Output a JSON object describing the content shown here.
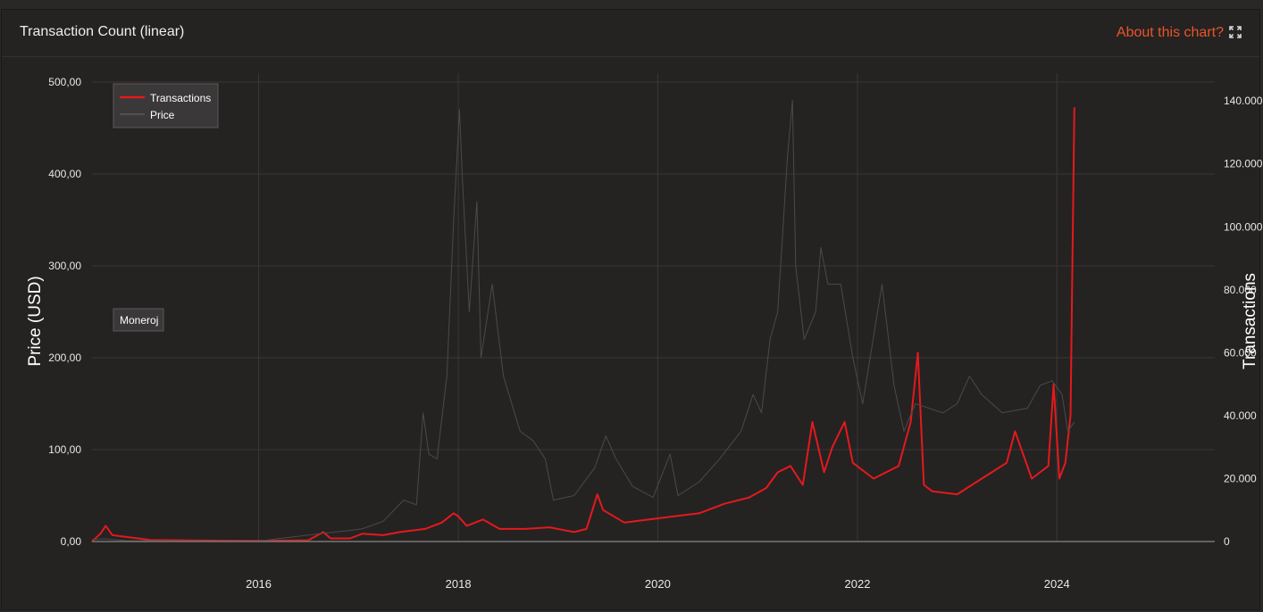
{
  "header": {
    "title": "Transaction Count (linear)",
    "about_label": "About this chart?"
  },
  "icons": {
    "expand": "expand-icon"
  },
  "colors": {
    "background": "#252222",
    "transactions": "#e31a1c",
    "price": "#4a4a4a",
    "link": "#e8552a",
    "grid": "#3a3737"
  },
  "chart_data": {
    "type": "line",
    "ylabel_left": "Price (USD)",
    "ylabel_right": "Transactions",
    "ylim_left": [
      0,
      500
    ],
    "ylim_right": [
      0,
      146000
    ],
    "xlim": [
      "2014-05-01",
      "2025-08-01"
    ],
    "x_ticks": [
      "2016",
      "2018",
      "2020",
      "2022",
      "2024"
    ],
    "y_left_ticks": [
      "0,00",
      "100,00",
      "200,00",
      "300,00",
      "400,00",
      "500,00"
    ],
    "y_right_ticks": [
      "0",
      "20.000",
      "40.000",
      "60.000",
      "80.000",
      "100.000",
      "120.000",
      "140.000"
    ],
    "grid": true,
    "legend": {
      "position": "top-left",
      "entries": [
        "Transactions",
        "Price"
      ]
    },
    "annotation": "Moneroj",
    "series": [
      {
        "name": "Transactions",
        "axis": "right",
        "points": [
          [
            "2014-05-01",
            0
          ],
          [
            "2014-06-01",
            2500
          ],
          [
            "2014-06-20",
            5000
          ],
          [
            "2014-07-15",
            2000
          ],
          [
            "2014-09-01",
            1500
          ],
          [
            "2014-12-01",
            500
          ],
          [
            "2015-06-01",
            300
          ],
          [
            "2016-01-01",
            200
          ],
          [
            "2016-07-01",
            400
          ],
          [
            "2016-08-25",
            3000
          ],
          [
            "2016-09-20",
            1000
          ],
          [
            "2016-12-01",
            1000
          ],
          [
            "2017-01-15",
            2500
          ],
          [
            "2017-04-01",
            2000
          ],
          [
            "2017-06-01",
            3000
          ],
          [
            "2017-09-01",
            4000
          ],
          [
            "2017-11-01",
            6000
          ],
          [
            "2017-12-15",
            9000
          ],
          [
            "2018-01-01",
            8000
          ],
          [
            "2018-02-01",
            5000
          ],
          [
            "2018-04-01",
            7000
          ],
          [
            "2018-06-01",
            4000
          ],
          [
            "2018-09-01",
            4000
          ],
          [
            "2018-12-01",
            4500
          ],
          [
            "2019-03-01",
            3000
          ],
          [
            "2019-04-15",
            4000
          ],
          [
            "2019-05-25",
            15000
          ],
          [
            "2019-06-15",
            10000
          ],
          [
            "2019-09-01",
            6000
          ],
          [
            "2019-12-01",
            7000
          ],
          [
            "2020-03-01",
            8000
          ],
          [
            "2020-06-01",
            9000
          ],
          [
            "2020-09-01",
            12000
          ],
          [
            "2020-12-01",
            14000
          ],
          [
            "2021-02-01",
            17000
          ],
          [
            "2021-03-15",
            22000
          ],
          [
            "2021-05-01",
            24000
          ],
          [
            "2021-06-15",
            18000
          ],
          [
            "2021-07-20",
            38000
          ],
          [
            "2021-09-01",
            22000
          ],
          [
            "2021-10-01",
            30000
          ],
          [
            "2021-11-15",
            38000
          ],
          [
            "2021-12-15",
            25000
          ],
          [
            "2022-03-01",
            20000
          ],
          [
            "2022-06-01",
            24000
          ],
          [
            "2022-07-15",
            38000
          ],
          [
            "2022-08-10",
            60000
          ],
          [
            "2022-09-01",
            18000
          ],
          [
            "2022-10-01",
            16000
          ],
          [
            "2023-01-01",
            15000
          ],
          [
            "2023-04-01",
            20000
          ],
          [
            "2023-07-01",
            25000
          ],
          [
            "2023-08-01",
            35000
          ],
          [
            "2023-10-01",
            20000
          ],
          [
            "2023-12-01",
            24000
          ],
          [
            "2023-12-20",
            50000
          ],
          [
            "2024-01-10",
            20000
          ],
          [
            "2024-02-01",
            25000
          ],
          [
            "2024-02-20",
            40000
          ],
          [
            "2024-03-05",
            138000
          ]
        ]
      },
      {
        "name": "Price",
        "axis": "left",
        "points": [
          [
            "2014-05-01",
            2
          ],
          [
            "2014-06-15",
            3
          ],
          [
            "2014-09-01",
            1
          ],
          [
            "2015-06-01",
            0.5
          ],
          [
            "2016-01-01",
            0.5
          ],
          [
            "2016-08-25",
            9
          ],
          [
            "2016-12-01",
            12
          ],
          [
            "2017-01-15",
            14
          ],
          [
            "2017-04-01",
            22
          ],
          [
            "2017-06-15",
            45
          ],
          [
            "2017-08-01",
            40
          ],
          [
            "2017-08-25",
            140
          ],
          [
            "2017-09-15",
            95
          ],
          [
            "2017-10-15",
            90
          ],
          [
            "2017-11-20",
            180
          ],
          [
            "2017-12-15",
            350
          ],
          [
            "2018-01-05",
            470
          ],
          [
            "2018-01-15",
            400
          ],
          [
            "2018-02-10",
            250
          ],
          [
            "2018-03-10",
            370
          ],
          [
            "2018-03-25",
            200
          ],
          [
            "2018-05-05",
            280
          ],
          [
            "2018-06-15",
            180
          ],
          [
            "2018-08-15",
            120
          ],
          [
            "2018-10-01",
            110
          ],
          [
            "2018-11-15",
            90
          ],
          [
            "2018-12-15",
            45
          ],
          [
            "2019-03-01",
            50
          ],
          [
            "2019-05-15",
            80
          ],
          [
            "2019-06-25",
            115
          ],
          [
            "2019-08-01",
            90
          ],
          [
            "2019-10-01",
            60
          ],
          [
            "2019-12-15",
            48
          ],
          [
            "2020-02-15",
            95
          ],
          [
            "2020-03-15",
            50
          ],
          [
            "2020-06-01",
            65
          ],
          [
            "2020-08-15",
            90
          ],
          [
            "2020-11-01",
            120
          ],
          [
            "2020-12-15",
            160
          ],
          [
            "2021-01-15",
            140
          ],
          [
            "2021-02-15",
            220
          ],
          [
            "2021-03-15",
            250
          ],
          [
            "2021-04-20",
            420
          ],
          [
            "2021-05-08",
            480
          ],
          [
            "2021-05-20",
            300
          ],
          [
            "2021-06-20",
            220
          ],
          [
            "2021-08-01",
            250
          ],
          [
            "2021-08-20",
            320
          ],
          [
            "2021-09-15",
            280
          ],
          [
            "2021-11-01",
            280
          ],
          [
            "2021-12-15",
            200
          ],
          [
            "2022-01-20",
            150
          ],
          [
            "2022-04-01",
            280
          ],
          [
            "2022-05-15",
            170
          ],
          [
            "2022-06-20",
            120
          ],
          [
            "2022-08-01",
            150
          ],
          [
            "2022-11-10",
            140
          ],
          [
            "2023-01-01",
            150
          ],
          [
            "2023-02-15",
            180
          ],
          [
            "2023-04-01",
            160
          ],
          [
            "2023-06-15",
            140
          ],
          [
            "2023-09-15",
            145
          ],
          [
            "2023-11-01",
            170
          ],
          [
            "2023-12-15",
            175
          ],
          [
            "2024-01-20",
            160
          ],
          [
            "2024-02-10",
            120
          ],
          [
            "2024-03-05",
            130
          ]
        ]
      }
    ]
  }
}
